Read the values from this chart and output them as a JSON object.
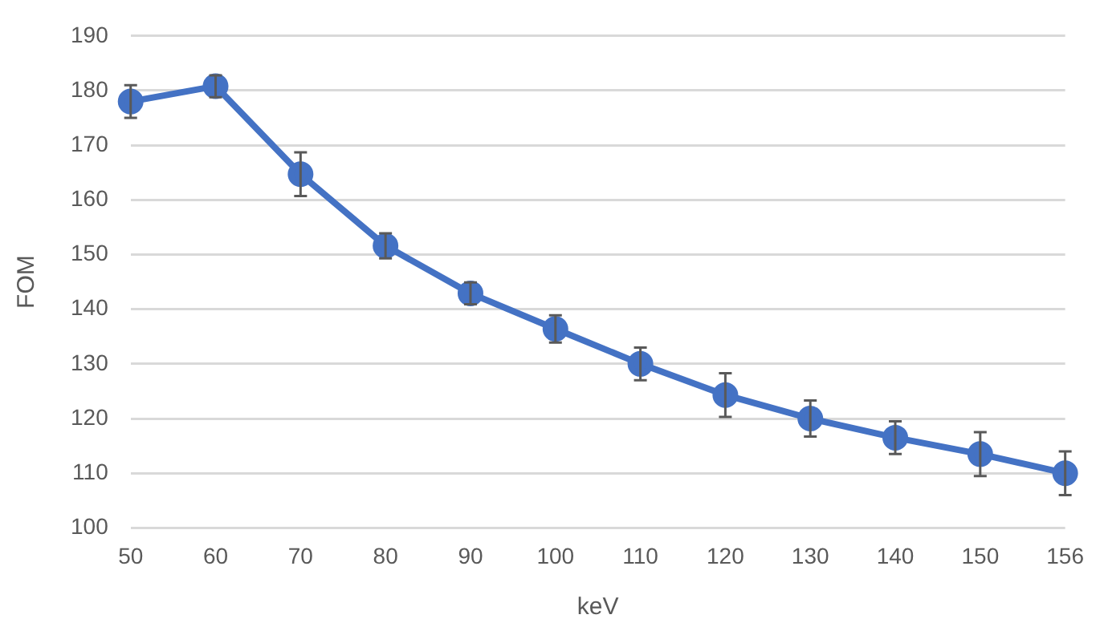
{
  "chart_data": {
    "type": "line",
    "xlabel": "keV",
    "ylabel": "FOM",
    "categories": [
      "50",
      "60",
      "70",
      "80",
      "90",
      "100",
      "110",
      "120",
      "130",
      "140",
      "150",
      "156"
    ],
    "series": [
      {
        "color": "#4472c4",
        "values": [
          178,
          180.8,
          164.7,
          151.6,
          142.9,
          136.4,
          130,
          124.3,
          120,
          116.5,
          113.5,
          110
        ],
        "errors": [
          3,
          2,
          4,
          2.3,
          2,
          2.5,
          3,
          4,
          3.3,
          3,
          4,
          4
        ]
      }
    ],
    "ylim": [
      100,
      190
    ],
    "yticks": [
      100,
      110,
      120,
      130,
      140,
      150,
      160,
      170,
      180,
      190
    ],
    "grid": "y",
    "legend": false,
    "marker": "circle",
    "line_style": "solid"
  }
}
